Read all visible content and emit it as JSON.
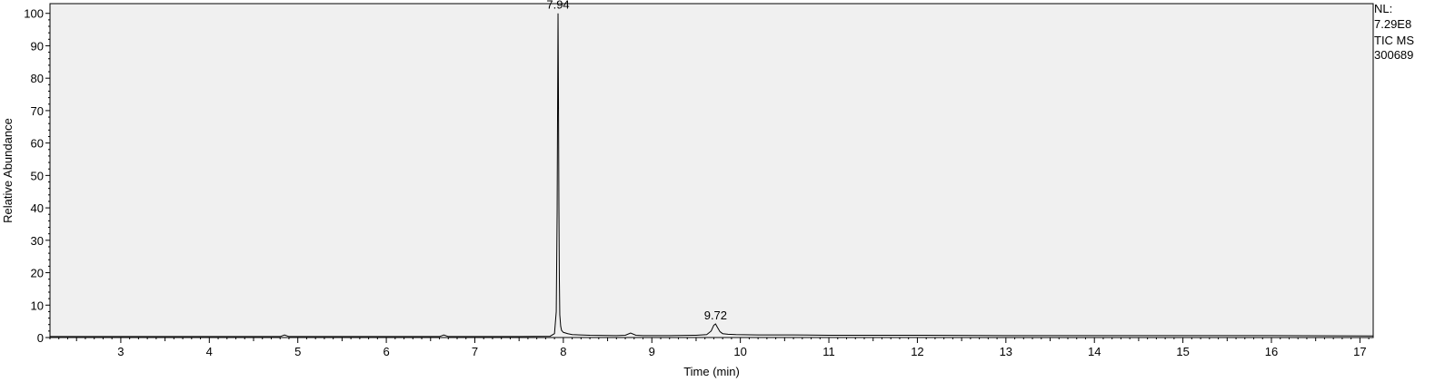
{
  "side_info": {
    "nl_label": "NL:",
    "nl_value": "7.29E8",
    "scan_type": "TIC  MS",
    "sample_id": "300689"
  },
  "chart_data": {
    "type": "line",
    "title": "",
    "xlabel": "Time (min)",
    "ylabel": "Relative Abundance",
    "xlim": [
      2.2,
      17.15
    ],
    "ylim": [
      0,
      103
    ],
    "x_ticks": [
      3,
      4,
      5,
      6,
      7,
      8,
      9,
      10,
      11,
      12,
      13,
      14,
      15,
      16,
      17
    ],
    "y_ticks": [
      0,
      10,
      20,
      30,
      40,
      50,
      60,
      70,
      80,
      90,
      100
    ],
    "grid": false,
    "colors": {
      "plot_bg": "#f0f0f0",
      "trace": "#000000",
      "axis": "#000000"
    },
    "series": [
      {
        "x": [
          2.2,
          3.0,
          4.0,
          4.8,
          4.85,
          4.9,
          5.5,
          6.6,
          6.65,
          6.7,
          7.5,
          7.85,
          7.9,
          7.92,
          7.93,
          7.935,
          7.94,
          7.945,
          7.95,
          7.955,
          7.96,
          7.97,
          7.98,
          8.0,
          8.05,
          8.1,
          8.3,
          8.6,
          8.7,
          8.76,
          8.82,
          8.9,
          9.2,
          9.5,
          9.62,
          9.67,
          9.7,
          9.72,
          9.74,
          9.77,
          9.8,
          9.86,
          9.95,
          10.2,
          10.6,
          11.0,
          12.0,
          13.0,
          14.0,
          15.0,
          16.0,
          17.15
        ],
        "y": [
          0.3,
          0.3,
          0.3,
          0.3,
          0.8,
          0.3,
          0.3,
          0.3,
          0.8,
          0.3,
          0.3,
          0.4,
          1.2,
          8,
          39,
          70,
          100,
          74,
          40,
          18,
          7,
          3.5,
          2.2,
          1.6,
          1.2,
          0.9,
          0.7,
          0.6,
          0.7,
          1.4,
          0.7,
          0.6,
          0.6,
          0.7,
          0.9,
          2.0,
          3.8,
          4.2,
          3.2,
          1.8,
          1.2,
          1.0,
          0.9,
          0.8,
          0.8,
          0.7,
          0.7,
          0.6,
          0.6,
          0.6,
          0.6,
          0.5
        ]
      }
    ],
    "peak_labels": [
      {
        "x": 7.94,
        "y": 100,
        "text": "7.94"
      },
      {
        "x": 9.72,
        "y": 4.2,
        "text": "9.72"
      }
    ]
  }
}
